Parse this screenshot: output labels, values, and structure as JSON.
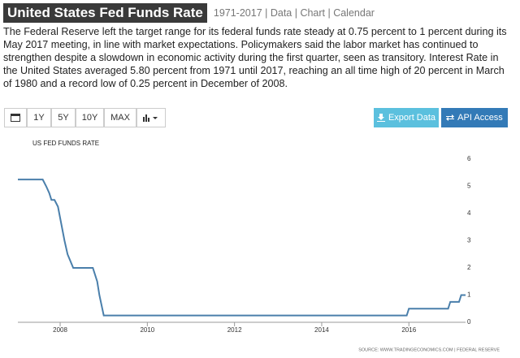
{
  "header": {
    "title": "United States Fed Funds Rate",
    "links": "1971-2017 | Data | Chart | Calendar"
  },
  "description": "The Federal Reserve left the target range for its federal funds rate steady at 0.75 percent to 1 percent during its May 2017 meeting, in line with market expectations. Policymakers said the labor market has continued to strengthen despite a slowdown in economic activity during the first quarter, seen as transitory. Interest Rate in the United States averaged 5.80 percent from 1971 until 2017, reaching an all time high of 20 percent in March of 1980 and a record low of 0.25 percent in December of 2008.",
  "toolbar": {
    "ranges": [
      "1Y",
      "5Y",
      "10Y",
      "MAX"
    ],
    "export": "Export Data",
    "api": "API Access"
  },
  "chart_data": {
    "type": "line",
    "title": "US FED FUNDS RATE",
    "source": "SOURCE: WWW.TRADINGECONOMICS.COM | FEDERAL RESERVE",
    "x": [
      2007.03,
      2007.6,
      2007.68,
      2007.75,
      2007.8,
      2007.87,
      2007.95,
      2008.1,
      2008.17,
      2008.3,
      2008.35,
      2008.75,
      2008.85,
      2008.9,
      2009.0,
      2015.95,
      2016.0,
      2016.9,
      2016.95,
      2017.15,
      2017.2,
      2017.3
    ],
    "values": [
      5.25,
      5.25,
      5.0,
      4.75,
      4.5,
      4.5,
      4.25,
      3.0,
      2.5,
      2.0,
      2.0,
      2.0,
      1.5,
      1.0,
      0.25,
      0.25,
      0.5,
      0.5,
      0.75,
      0.75,
      1.0,
      1.0
    ],
    "color": "#4a7fab",
    "xlim": [
      2007.03,
      2017.3
    ],
    "xticks": [
      2008,
      2010,
      2012,
      2014,
      2016
    ],
    "ylim": [
      0,
      6
    ],
    "yticks": [
      0,
      1,
      2,
      3,
      4,
      5,
      6
    ]
  }
}
